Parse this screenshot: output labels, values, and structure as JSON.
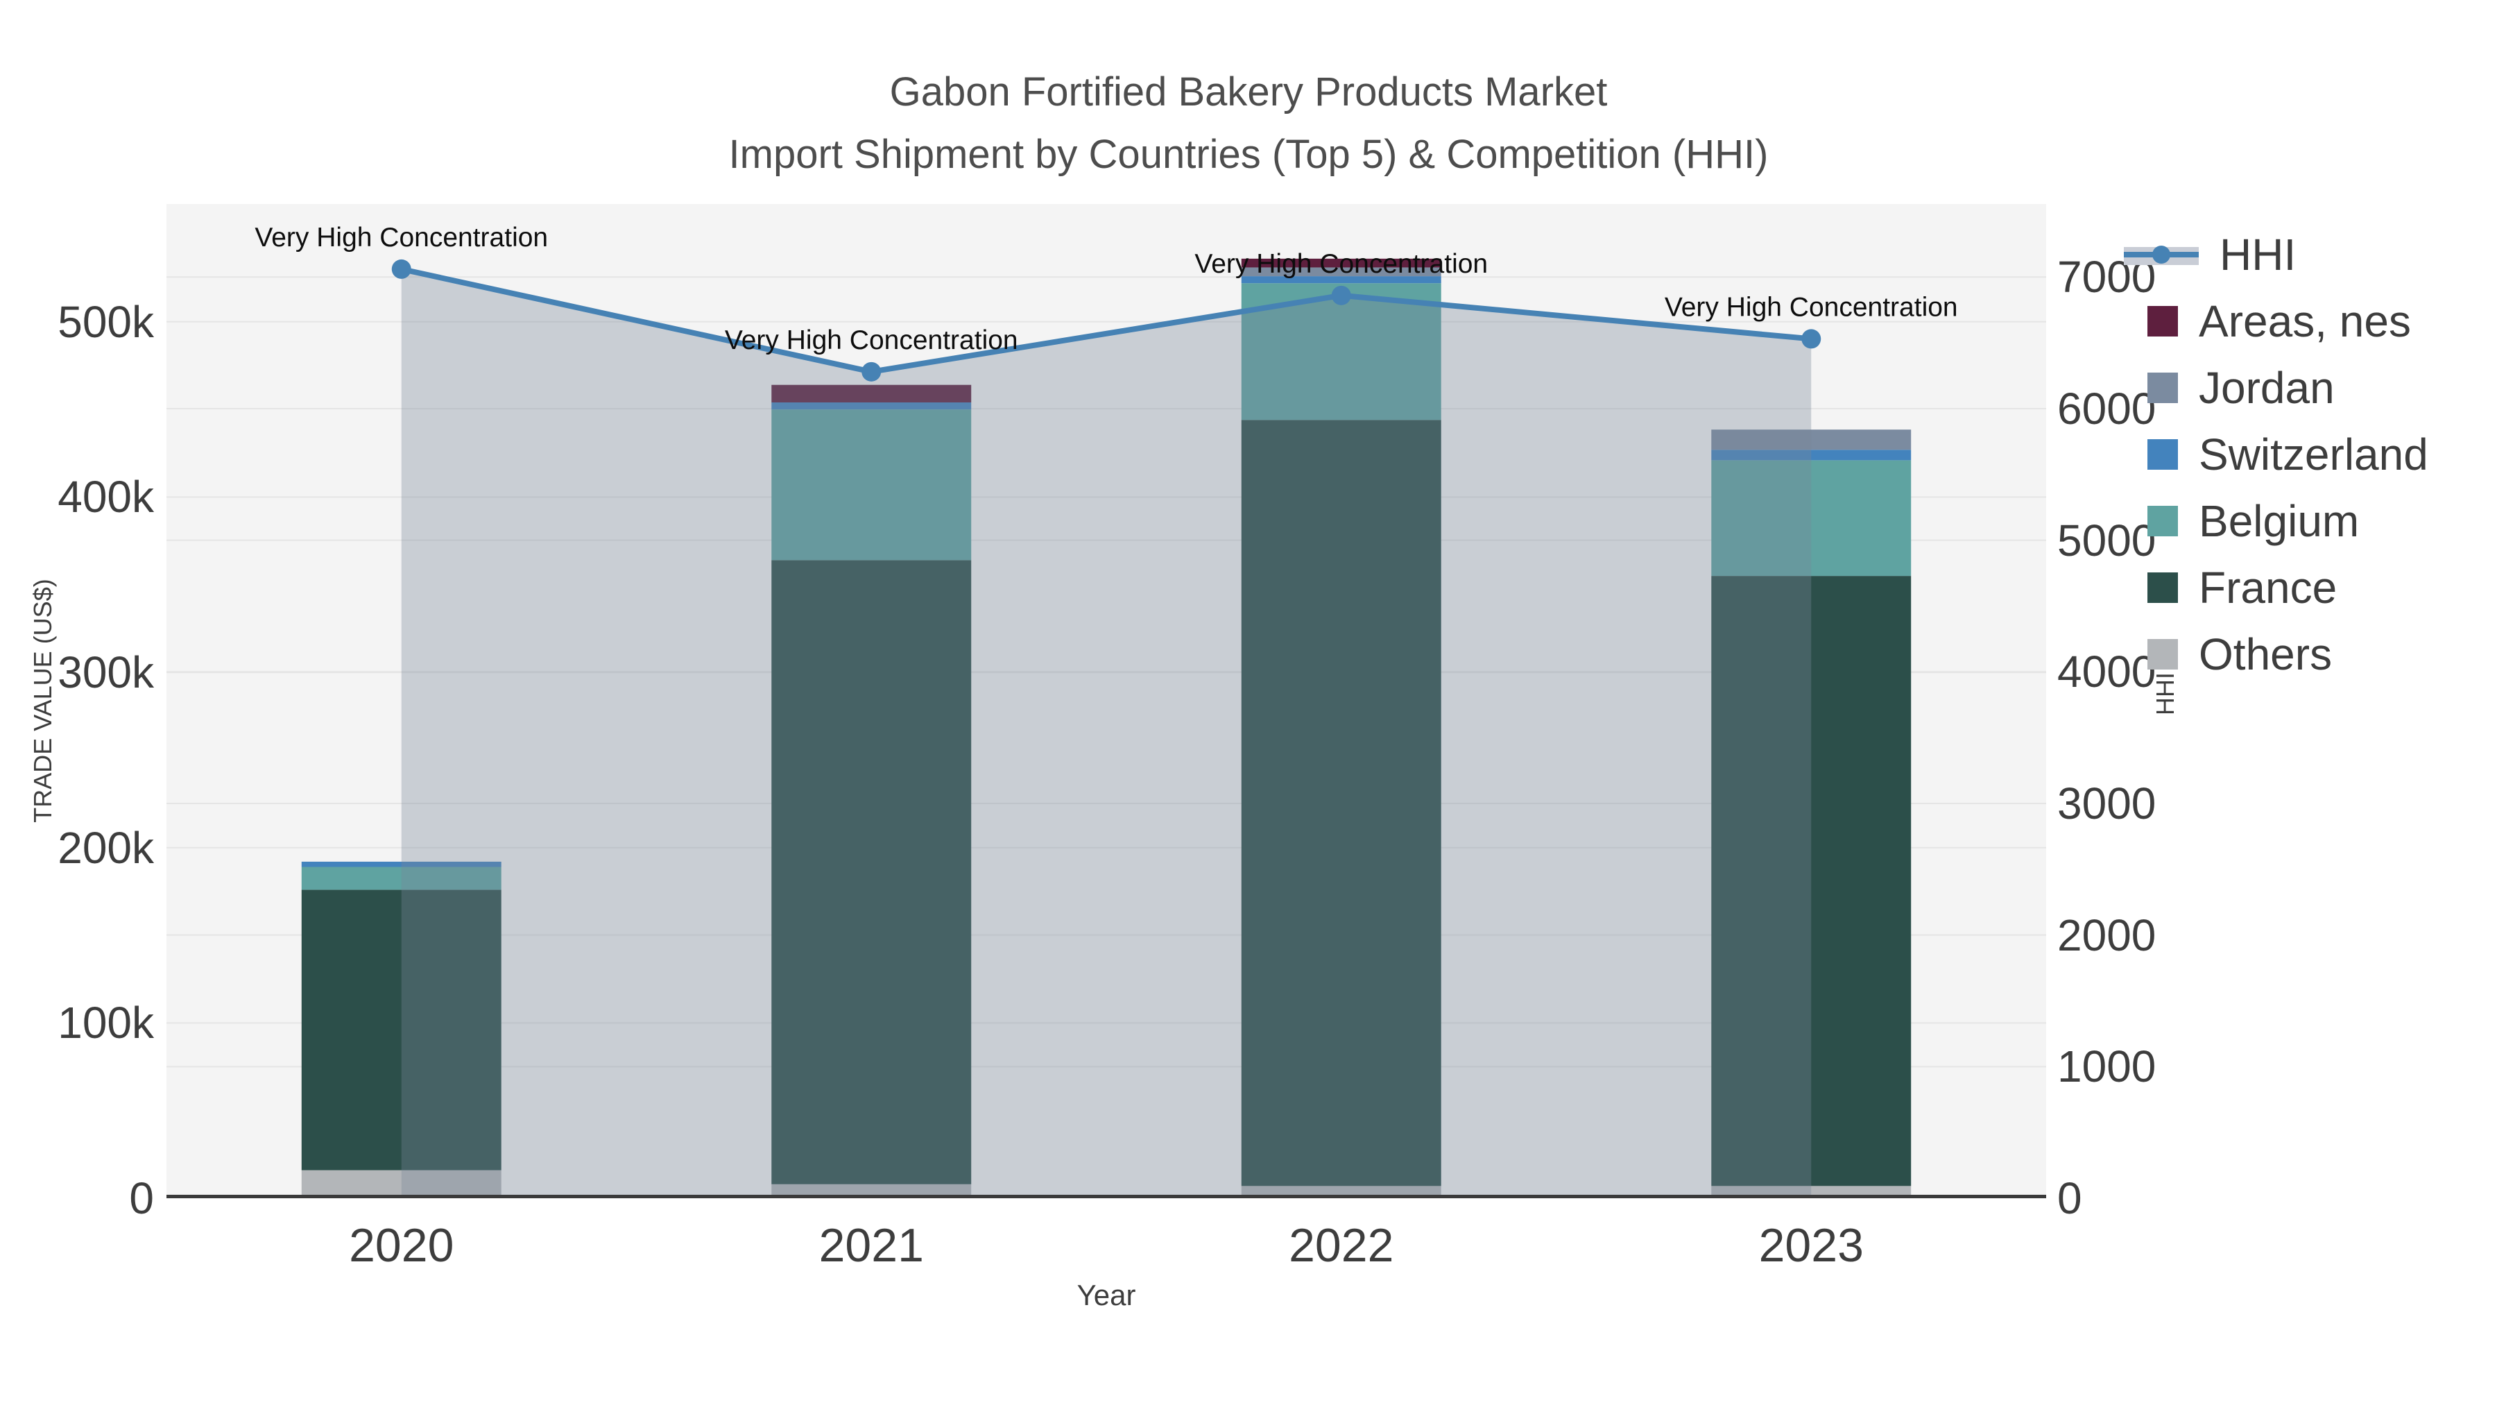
{
  "title": {
    "line1": "Gabon Fortified Bakery Products Market",
    "line2": "Import Shipment by Countries (Top 5) & Competition (HHI)"
  },
  "axes": {
    "x": {
      "title": "Year",
      "ticks": [
        "2020",
        "2021",
        "2022",
        "2023"
      ]
    },
    "y_left": {
      "title": "TRADE VALUE (US$)",
      "tick_labels": [
        "0",
        "100k",
        "200k",
        "300k",
        "400k",
        "500k"
      ],
      "tick_values": [
        0,
        100000,
        200000,
        300000,
        400000,
        500000
      ]
    },
    "y_right": {
      "title": "HHI",
      "tick_labels": [
        "0",
        "1000",
        "2000",
        "3000",
        "4000",
        "5000",
        "6000",
        "7000"
      ],
      "tick_values": [
        0,
        1000,
        2000,
        3000,
        4000,
        5000,
        6000,
        7000
      ]
    }
  },
  "legend": {
    "items": [
      {
        "label": "HHI",
        "type": "line",
        "color": "#4682b4"
      },
      {
        "label": "Areas, nes",
        "type": "swatch",
        "color": "#5e1f3e"
      },
      {
        "label": "Jordan",
        "type": "swatch",
        "color": "#7b8ba0"
      },
      {
        "label": "Switzerland",
        "type": "swatch",
        "color": "#4383bd"
      },
      {
        "label": "Belgium",
        "type": "swatch",
        "color": "#5fa3a1"
      },
      {
        "label": "France",
        "type": "swatch",
        "color": "#2c4f4a"
      },
      {
        "label": "Others",
        "type": "swatch",
        "color": "#b3b6b9"
      }
    ]
  },
  "colors": {
    "plot_background": "#f4f4f4",
    "gridline": "#e5e5e5",
    "baseline": "#3a3a3a",
    "hhi_line": "#4682b4",
    "hhi_area_fill": "rgba(119,136,153,0.35)",
    "annotation_text": "#0d0d0d"
  },
  "chart_data": {
    "type": "bar+line",
    "title": "Gabon Fortified Bakery Products Market — Import Shipment by Countries (Top 5) & Competition (HHI)",
    "categories": [
      "2020",
      "2021",
      "2022",
      "2023"
    ],
    "stacked_bar_series_bottom_to_top": [
      {
        "name": "Others",
        "color": "#b3b6b9",
        "values": [
          16000,
          8000,
          7000,
          7000
        ]
      },
      {
        "name": "France",
        "color": "#2c4f4a",
        "values": [
          160000,
          356000,
          437000,
          348000
        ]
      },
      {
        "name": "Belgium",
        "color": "#5fa3a1",
        "values": [
          13000,
          86000,
          78000,
          66000
        ]
      },
      {
        "name": "Switzerland",
        "color": "#4383bd",
        "values": [
          3000,
          4000,
          4000,
          6000
        ]
      },
      {
        "name": "Jordan",
        "color": "#7b8ba0",
        "values": [
          0,
          0,
          5000,
          11500
        ]
      },
      {
        "name": "Areas, nes",
        "color": "#5e1f3e",
        "values": [
          0,
          10000,
          5000,
          0
        ]
      }
    ],
    "bar_totals": [
      192000,
      464000,
      536000,
      438500
    ],
    "line_series": {
      "name": "HHI",
      "color": "#4682b4",
      "area_fill": "rgba(119,136,153,0.35)",
      "values": [
        7060,
        6280,
        6860,
        6530
      ]
    },
    "annotations": [
      "Very High Concentration",
      "Very High Concentration",
      "Very High Concentration",
      "Very High Concentration"
    ],
    "xlabel": "Year",
    "ylabel_left": "TRADE VALUE (US$)",
    "ylabel_right": "HHI",
    "y_left_range": [
      0,
      567200
    ],
    "y_right_range": [
      0,
      7555
    ],
    "grid": true,
    "legend_position": "right"
  }
}
